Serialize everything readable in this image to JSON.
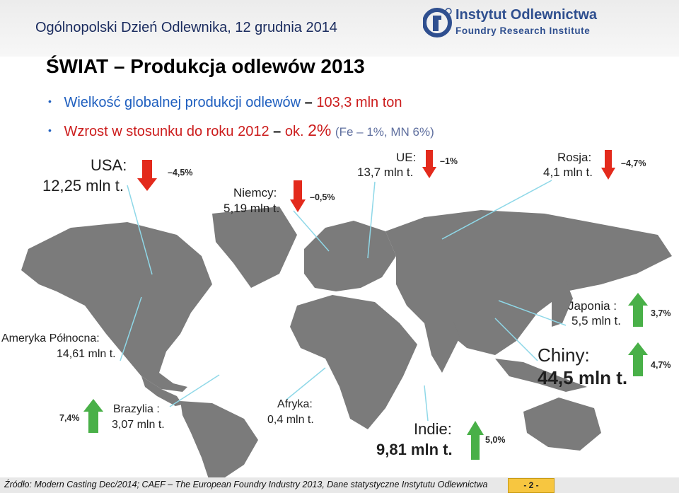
{
  "header": {
    "event_title": "Ogólnopolski Dzień Odlewnika, 12 grudnia 2014",
    "logo": {
      "name": "Instytut Odlewnictwa",
      "subtitle": "Foundry Research Institute",
      "icon": "institute-logo-icon"
    }
  },
  "slide": {
    "title": "ŚWIAT – Produkcja odlewów 2013",
    "bullets": [
      {
        "label": "Wielkość globalnej produkcji odlewów",
        "dash": "–",
        "value": "103,3 mln ton"
      },
      {
        "label": "Wzrost w stosunku do roku 2012",
        "dash": "–",
        "value_prefix": "ok.",
        "value": "2%",
        "note": "(Fe – 1%, MN 6%)"
      }
    ]
  },
  "regions": {
    "usa": {
      "name": "USA:",
      "value": "12,25 mln t.",
      "change": "–4,5%",
      "trend": "down"
    },
    "germany": {
      "name": "Niemcy:",
      "value": "5,19 mln t.",
      "change": "–0,5%",
      "trend": "down"
    },
    "eu": {
      "name": "UE:",
      "value": "13,7 mln t.",
      "change": "–1%",
      "trend": "down"
    },
    "russia": {
      "name": "Rosja:",
      "value": "4,1 mln t.",
      "change": "–4,7%",
      "trend": "down"
    },
    "north_america": {
      "name": "Ameryka Północna:",
      "value": "14,61 mln t."
    },
    "japan": {
      "name": "Japonia :",
      "value": "5,5 mln t.",
      "change": "3,7%",
      "trend": "up"
    },
    "china": {
      "name": "Chiny:",
      "value": "44,5 mln t.",
      "change": "4,7%",
      "trend": "up"
    },
    "brazil": {
      "name": "Brazylia :",
      "value": "3,07 mln t.",
      "change": "7,4%",
      "trend": "up"
    },
    "africa": {
      "name": "Afryka:",
      "value": "0,4 mln t."
    },
    "india": {
      "name": "Indie:",
      "value": "9,81 mln t.",
      "change": "5,0%",
      "trend": "up"
    }
  },
  "colors": {
    "map": "#7b7b7b",
    "down_arrow": "#e32a1c",
    "up_arrow": "#49b048",
    "bullet_text": "#1f5fbf",
    "highlight": "#cc1d1d",
    "connector": "#8fd8e8"
  },
  "footer": {
    "source": "Źródło: Modern Casting Dec/2014; CAEF – The European Foundry Industry 2013, Dane statystyczne Instytutu Odlewnictwa",
    "page": "- 2 -"
  }
}
